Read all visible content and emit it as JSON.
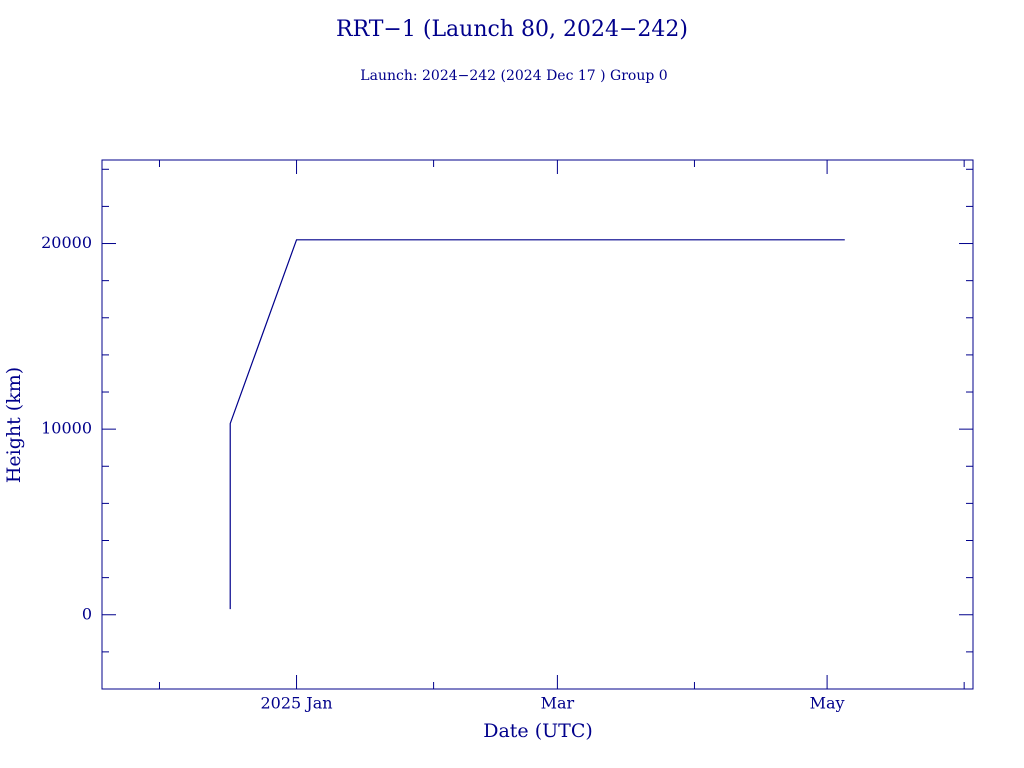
{
  "chart_data": {
    "type": "line",
    "title": "RRT−1 (Launch 80, 2024−242)",
    "subtitle": "Launch: 2024−242  (2024 Dec 17 )  Group 0",
    "x_label": "Date (UTC)",
    "y_label": "Height (km)",
    "x": [
      "2024-12-17",
      "2024-12-17",
      "2024-12-17",
      "2025-01-01",
      "2025-05-05"
    ],
    "series": [
      {
        "color": "#00008b",
        "values": [
          300,
          2700,
          10300,
          20200,
          20200
        ]
      }
    ],
    "xlim": [
      "2024-11-18",
      "2025-06-03"
    ],
    "xticks": [
      {
        "value": "2025-01-01",
        "label": "2025 Jan"
      },
      {
        "value": "2025-03-01",
        "label": "Mar"
      },
      {
        "value": "2025-05-01",
        "label": "May"
      }
    ],
    "xminorticks": [
      "2024-12-01",
      "2025-02-01",
      "2025-04-01",
      "2025-06-01"
    ],
    "ylim": [
      -4000,
      24500
    ],
    "yticks": [
      0,
      10000,
      20000
    ],
    "yminorticks": [
      -2000,
      2000,
      4000,
      6000,
      8000,
      12000,
      14000,
      16000,
      18000,
      22000,
      24000
    ],
    "grid": false
  }
}
